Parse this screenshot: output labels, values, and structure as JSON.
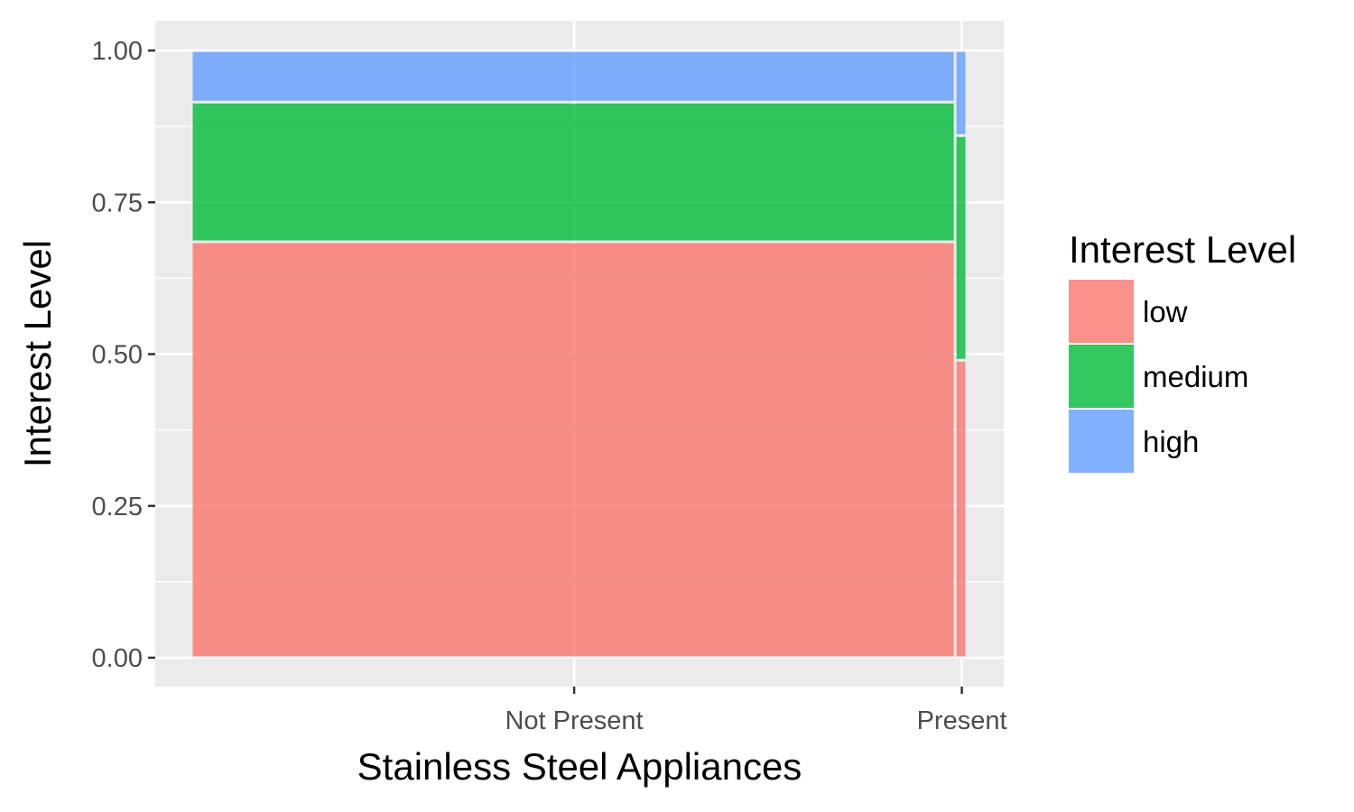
{
  "chart_data": {
    "type": "mosaic",
    "title": "",
    "xlabel": "Stainless Steel Appliances",
    "ylabel": "Interest Level",
    "categories": [
      "Not Present",
      "Present"
    ],
    "category_shares": [
      0.985,
      0.015
    ],
    "ylim": [
      0,
      1
    ],
    "yticks": [
      0.0,
      0.25,
      0.5,
      0.75,
      1.0
    ],
    "ytick_labels": [
      "0.00",
      "0.25",
      "0.50",
      "0.75",
      "1.00"
    ],
    "grid": true,
    "legend": {
      "title": "Interest Level",
      "placement": "right",
      "entries": [
        "low",
        "medium",
        "high"
      ]
    },
    "series": [
      {
        "name": "low",
        "color": "#F8766D",
        "values": [
          0.685,
          0.49
        ]
      },
      {
        "name": "medium",
        "color": "#00BA38",
        "values": [
          0.23,
          0.37
        ]
      },
      {
        "name": "high",
        "color": "#619CFF",
        "values": [
          0.085,
          0.14
        ]
      }
    ]
  }
}
